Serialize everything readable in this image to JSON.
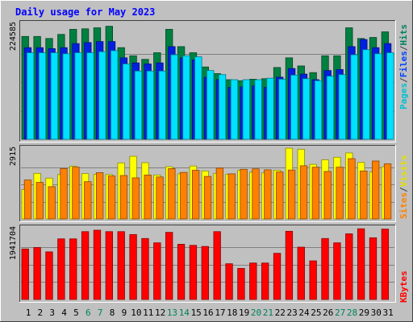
{
  "chart_data": {
    "title": "Daily usage for May 2023",
    "type": "bar",
    "days": [
      "1",
      "2",
      "3",
      "4",
      "5",
      "6",
      "7",
      "8",
      "9",
      "10",
      "11",
      "12",
      "13",
      "14",
      "15",
      "16",
      "17",
      "18",
      "19",
      "20",
      "21",
      "22",
      "23",
      "24",
      "25",
      "26",
      "27",
      "28",
      "29",
      "30",
      "31"
    ],
    "weekend_days": [
      6,
      7,
      13,
      14,
      20,
      21,
      27,
      28
    ],
    "panels": [
      {
        "name": "hits-files-pages",
        "max_label": "224585",
        "axis_max": 224585,
        "series": [
          {
            "name": "Hits",
            "color": "#008040",
            "values": [
              202000,
              202000,
              198000,
              206000,
              216000,
              217000,
              219000,
              222000,
              180000,
              164000,
              157000,
              170000,
              216000,
              182000,
              170000,
              142000,
              129000,
              117000,
              115000,
              118000,
              119000,
              141000,
              160000,
              144000,
              131000,
              164000,
              164000,
              219000,
              198000,
              200000,
              211000
            ]
          },
          {
            "name": "Files",
            "color": "#0020e0",
            "values": [
              180000,
              180000,
              178000,
              180000,
              188000,
              190000,
              192000,
              192000,
              160000,
              150000,
              148000,
              150000,
              182000,
              160000,
              156000,
              122000,
              117000,
              102000,
              103000,
              105000,
              102000,
              122000,
              139000,
              128000,
              117000,
              135000,
              137000,
              182000,
              196000,
              180000,
              188000
            ]
          },
          {
            "name": "Pages",
            "color": "#00e0ff",
            "values": [
              170000,
              170000,
              170000,
              168000,
              170000,
              170000,
              172000,
              174000,
              148000,
              134000,
              134000,
              134000,
              166000,
              164000,
              162000,
              135000,
              127000,
              117000,
              117000,
              117000,
              120000,
              118000,
              126000,
              119000,
              115000,
              124000,
              127000,
              166000,
              176000,
              168000,
              170000
            ]
          }
        ]
      },
      {
        "name": "visits-sites",
        "max_label": "2915",
        "axis_max": 2915,
        "series": [
          {
            "name": "Visits",
            "color": "#ffff00",
            "values": [
              1240,
              1920,
              1720,
              1870,
              2220,
              1910,
              1880,
              1870,
              2360,
              2640,
              2370,
              1850,
              2200,
              1900,
              2230,
              2020,
              1920,
              1880,
              2050,
              1970,
              1940,
              2050,
              2980,
              2930,
              2300,
              2490,
              2600,
              2780,
              2380,
              1980,
              2200
            ]
          },
          {
            "name": "Sites",
            "color": "#ff8000",
            "values": [
              1640,
              1540,
              1360,
              2120,
              2180,
              1570,
              1950,
              1810,
              1830,
              1730,
              1850,
              1770,
              2120,
              1960,
              2050,
              1790,
              2140,
              1900,
              2090,
              2110,
              2070,
              1980,
              2060,
              2240,
              2180,
              2000,
              2180,
              2540,
              2020,
              2440,
              2320
            ]
          }
        ]
      },
      {
        "name": "kbytes",
        "max_label": "1941704",
        "axis_max": 1941704,
        "series": [
          {
            "name": "KBytes",
            "color": "#ff0000",
            "values": [
              1400000,
              1440000,
              1320000,
              1680000,
              1680000,
              1880000,
              1920000,
              1880000,
              1880000,
              1800000,
              1690000,
              1570000,
              1860000,
              1530000,
              1500000,
              1470000,
              1880000,
              990000,
              860000,
              1010000,
              1010000,
              1280000,
              1890000,
              1450000,
              1070000,
              1690000,
              1570000,
              1820000,
              1960000,
              1710000,
              1950000
            ]
          }
        ]
      }
    ],
    "legend": [
      {
        "panel": 0,
        "parts": [
          {
            "text": "Pages",
            "color": "#00c0d0"
          },
          {
            "text": "/",
            "color": "#404040"
          },
          {
            "text": "Files",
            "color": "#0040ff"
          },
          {
            "text": "/",
            "color": "#404040"
          },
          {
            "text": "Hits",
            "color": "#00805c"
          }
        ]
      },
      {
        "panel": 1,
        "parts": [
          {
            "text": "Sites",
            "color": "#ff8000"
          },
          {
            "text": "/",
            "color": "#404040"
          },
          {
            "text": "Visits",
            "color": "#e0e000"
          }
        ]
      },
      {
        "panel": 2,
        "parts": [
          {
            "text": "KBytes",
            "color": "#ff0000"
          }
        ]
      }
    ],
    "colors": {
      "background": "#c0c0c0",
      "title": "#0000ff",
      "weekday_label": "#000000",
      "weekend_label": "#00805c"
    }
  }
}
